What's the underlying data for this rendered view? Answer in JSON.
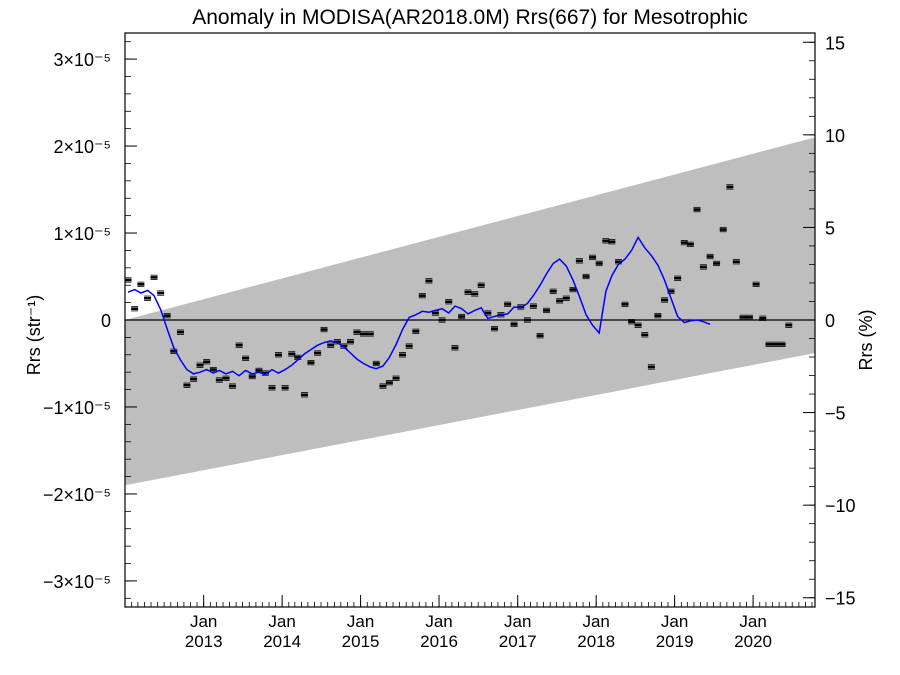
{
  "chart_data": {
    "type": "scatter",
    "title": "Anomaly in MODISA(AR2018.0M) Rrs(667) for Mesotrophic",
    "ylabel_left": "Rrs (str⁻¹)",
    "ylabel_right": "Rrs (%)",
    "xlabel": "",
    "ylim_left": [
      -3.3e-05,
      3.3e-05
    ],
    "ylim_right": [
      -15.5,
      15.5
    ],
    "xlim": [
      "2012-01-01",
      "2020-10-15"
    ],
    "grid": false,
    "left_ticks": [
      {
        "value": 3e-05,
        "label": "3×10⁻⁵"
      },
      {
        "value": 2e-05,
        "label": "2×10⁻⁵"
      },
      {
        "value": 1e-05,
        "label": "1×10⁻⁵"
      },
      {
        "value": 0,
        "label": "0"
      },
      {
        "value": -1e-05,
        "label": "−1×10⁻⁵"
      },
      {
        "value": -2e-05,
        "label": "−2×10⁻⁵"
      },
      {
        "value": -3e-05,
        "label": "−3×10⁻⁵"
      }
    ],
    "right_ticks": [
      {
        "value": 15,
        "label": "15"
      },
      {
        "value": 10,
        "label": "10"
      },
      {
        "value": 5,
        "label": "5"
      },
      {
        "value": 0,
        "label": "0"
      },
      {
        "value": -5,
        "label": "−5"
      },
      {
        "value": -10,
        "label": "−10"
      },
      {
        "value": -15,
        "label": "−15"
      }
    ],
    "x_ticks": [
      {
        "date": "2013-01-01",
        "month": "Jan",
        "year": "2013"
      },
      {
        "date": "2014-01-01",
        "month": "Jan",
        "year": "2014"
      },
      {
        "date": "2015-01-01",
        "month": "Jan",
        "year": "2015"
      },
      {
        "date": "2016-01-01",
        "month": "Jan",
        "year": "2016"
      },
      {
        "date": "2017-01-01",
        "month": "Jan",
        "year": "2017"
      },
      {
        "date": "2018-01-01",
        "month": "Jan",
        "year": "2018"
      },
      {
        "date": "2019-01-01",
        "month": "Jan",
        "year": "2019"
      },
      {
        "date": "2020-01-01",
        "month": "Jan",
        "year": "2020"
      }
    ],
    "band": {
      "color": "#bebebe",
      "upper_start": [
        "2012-01-01",
        0.0
      ],
      "upper_end": [
        "2020-10-15",
        2.1e-05
      ],
      "lower_start": [
        "2012-01-01",
        -1.9e-05
      ],
      "lower_end": [
        "2020-10-15",
        -3.8e-06
      ]
    },
    "points_color": "#000000",
    "points": [
      [
        "2012-01-15",
        4.6e-06
      ],
      [
        "2012-02-15",
        1.3e-06
      ],
      [
        "2012-03-15",
        4.1e-06
      ],
      [
        "2012-04-15",
        2.5e-06
      ],
      [
        "2012-05-15",
        4.9e-06
      ],
      [
        "2012-06-15",
        3.1e-06
      ],
      [
        "2012-07-15",
        5e-07
      ],
      [
        "2012-08-15",
        -3.6e-06
      ],
      [
        "2012-09-15",
        -1.4e-06
      ],
      [
        "2012-10-15",
        -7.5e-06
      ],
      [
        "2012-11-15",
        -6.8e-06
      ],
      [
        "2012-12-15",
        -5.2e-06
      ],
      [
        "2013-01-15",
        -4.8e-06
      ],
      [
        "2013-02-15",
        -5.7e-06
      ],
      [
        "2013-03-15",
        -6.9e-06
      ],
      [
        "2013-04-15",
        -6.7e-06
      ],
      [
        "2013-05-15",
        -7.6e-06
      ],
      [
        "2013-06-15",
        -2.9e-06
      ],
      [
        "2013-07-15",
        -4.4e-06
      ],
      [
        "2013-08-15",
        -6.5e-06
      ],
      [
        "2013-09-15",
        -5.8e-06
      ],
      [
        "2013-10-15",
        -6.1e-06
      ],
      [
        "2013-11-15",
        -7.8e-06
      ],
      [
        "2013-12-15",
        -4e-06
      ],
      [
        "2014-01-15",
        -7.8e-06
      ],
      [
        "2014-02-15",
        -3.9e-06
      ],
      [
        "2014-03-15",
        -4.3e-06
      ],
      [
        "2014-04-15",
        -8.6e-06
      ],
      [
        "2014-05-15",
        -4.9e-06
      ],
      [
        "2014-06-15",
        -3.8e-06
      ],
      [
        "2014-07-15",
        -1.1e-06
      ],
      [
        "2014-08-15",
        -2.9e-06
      ],
      [
        "2014-09-15",
        -2.5e-06
      ],
      [
        "2014-10-15",
        -3e-06
      ],
      [
        "2014-11-15",
        -2.5e-06
      ],
      [
        "2014-12-15",
        -1.4e-06
      ],
      [
        "2015-01-15",
        -1.6e-06
      ],
      [
        "2015-02-15",
        -1.6e-06
      ],
      [
        "2015-03-15",
        -5e-06
      ],
      [
        "2015-04-15",
        -7.6e-06
      ],
      [
        "2015-05-15",
        -7.2e-06
      ],
      [
        "2015-06-15",
        -6.7e-06
      ],
      [
        "2015-07-15",
        -4e-06
      ],
      [
        "2015-08-15",
        -3e-06
      ],
      [
        "2015-09-15",
        -1.3e-06
      ],
      [
        "2015-10-15",
        2.8e-06
      ],
      [
        "2015-11-15",
        4.5e-06
      ],
      [
        "2015-12-15",
        8e-07
      ],
      [
        "2016-01-15",
        0.0
      ],
      [
        "2016-02-15",
        2.1e-06
      ],
      [
        "2016-03-15",
        -3.2e-06
      ],
      [
        "2016-04-15",
        4e-07
      ],
      [
        "2016-05-15",
        3.2e-06
      ],
      [
        "2016-06-15",
        3e-06
      ],
      [
        "2016-07-15",
        4e-06
      ],
      [
        "2016-08-15",
        8e-07
      ],
      [
        "2016-09-15",
        -1e-06
      ],
      [
        "2016-10-15",
        6e-07
      ],
      [
        "2016-11-15",
        1.8e-06
      ],
      [
        "2016-12-15",
        -5e-07
      ],
      [
        "2017-01-15",
        1.5e-06
      ],
      [
        "2017-02-15",
        0.0
      ],
      [
        "2017-03-15",
        1.6e-06
      ],
      [
        "2017-04-15",
        -1.8e-06
      ],
      [
        "2017-05-15",
        1.1e-06
      ],
      [
        "2017-06-15",
        3.3e-06
      ],
      [
        "2017-07-15",
        2.2e-06
      ],
      [
        "2017-08-15",
        2.5e-06
      ],
      [
        "2017-09-15",
        3.5e-06
      ],
      [
        "2017-10-15",
        6.8e-06
      ],
      [
        "2017-11-15",
        5e-06
      ],
      [
        "2017-12-15",
        7.2e-06
      ],
      [
        "2018-01-15",
        6.5e-06
      ],
      [
        "2018-02-15",
        9.1e-06
      ],
      [
        "2018-03-15",
        9e-06
      ],
      [
        "2018-04-15",
        6.7e-06
      ],
      [
        "2018-05-15",
        1.8e-06
      ],
      [
        "2018-06-15",
        -2e-07
      ],
      [
        "2018-07-15",
        -6e-07
      ],
      [
        "2018-08-15",
        -1.7e-06
      ],
      [
        "2018-09-15",
        -5.4e-06
      ],
      [
        "2018-10-15",
        5e-07
      ],
      [
        "2018-11-15",
        2.3e-06
      ],
      [
        "2018-12-15",
        3.3e-06
      ],
      [
        "2019-01-15",
        4.8e-06
      ],
      [
        "2019-02-15",
        8.9e-06
      ],
      [
        "2019-03-15",
        8.7e-06
      ],
      [
        "2019-04-15",
        1.27e-05
      ],
      [
        "2019-05-15",
        6.1e-06
      ],
      [
        "2019-06-15",
        7.3e-06
      ],
      [
        "2019-07-15",
        6.5e-06
      ],
      [
        "2019-08-15",
        1.04e-05
      ],
      [
        "2019-09-15",
        1.53e-05
      ],
      [
        "2019-10-15",
        6.7e-06
      ],
      [
        "2019-11-15",
        3e-07
      ],
      [
        "2019-12-15",
        3e-07
      ],
      [
        "2020-01-15",
        4.1e-06
      ],
      [
        "2020-02-15",
        2e-07
      ],
      [
        "2020-03-15",
        -2.8e-06
      ],
      [
        "2020-04-15",
        -2.8e-06
      ],
      [
        "2020-05-15",
        -2.8e-06
      ],
      [
        "2020-06-15",
        -6e-07
      ]
    ],
    "smooth_line_color": "#0000ff",
    "smooth_line": [
      [
        "2012-01-15",
        3.2e-06
      ],
      [
        "2012-02-15",
        3.5e-06
      ],
      [
        "2012-03-15",
        3.1e-06
      ],
      [
        "2012-04-15",
        3.4e-06
      ],
      [
        "2012-05-15",
        2.8e-06
      ],
      [
        "2012-06-15",
        1.2e-06
      ],
      [
        "2012-07-15",
        -1e-06
      ],
      [
        "2012-08-15",
        -3.2e-06
      ],
      [
        "2012-09-15",
        -4.6e-06
      ],
      [
        "2012-10-15",
        -5.7e-06
      ],
      [
        "2012-11-15",
        -6.2e-06
      ],
      [
        "2012-12-15",
        -6e-06
      ],
      [
        "2013-01-15",
        -5.7e-06
      ],
      [
        "2013-02-15",
        -6.1e-06
      ],
      [
        "2013-03-15",
        -5.8e-06
      ],
      [
        "2013-04-15",
        -6.2e-06
      ],
      [
        "2013-05-15",
        -5.9e-06
      ],
      [
        "2013-06-15",
        -6.4e-06
      ],
      [
        "2013-07-15",
        -5.8e-06
      ],
      [
        "2013-08-15",
        -6.2e-06
      ],
      [
        "2013-09-15",
        -6e-06
      ],
      [
        "2013-10-15",
        -6.3e-06
      ],
      [
        "2013-11-15",
        -5.7e-06
      ],
      [
        "2013-12-15",
        -6.1e-06
      ],
      [
        "2014-01-15",
        -5.7e-06
      ],
      [
        "2014-02-15",
        -5.2e-06
      ],
      [
        "2014-03-15",
        -4.6e-06
      ],
      [
        "2014-04-15",
        -3.9e-06
      ],
      [
        "2014-05-15",
        -3.4e-06
      ],
      [
        "2014-06-15",
        -2.9e-06
      ],
      [
        "2014-07-15",
        -2.6e-06
      ],
      [
        "2014-08-15",
        -2.4e-06
      ],
      [
        "2014-09-15",
        -2.6e-06
      ],
      [
        "2014-10-15",
        -3.1e-06
      ],
      [
        "2014-11-15",
        -3.8e-06
      ],
      [
        "2014-12-15",
        -4.5e-06
      ],
      [
        "2015-01-15",
        -5e-06
      ],
      [
        "2015-02-15",
        -5.4e-06
      ],
      [
        "2015-03-15",
        -5.6e-06
      ],
      [
        "2015-04-15",
        -5.3e-06
      ],
      [
        "2015-05-15",
        -4.3e-06
      ],
      [
        "2015-06-15",
        -2.8e-06
      ],
      [
        "2015-07-15",
        -1.1e-06
      ],
      [
        "2015-08-15",
        3e-07
      ],
      [
        "2015-09-15",
        6e-07
      ],
      [
        "2015-10-15",
        1e-06
      ],
      [
        "2015-11-15",
        9e-07
      ],
      [
        "2015-12-15",
        1.1e-06
      ],
      [
        "2016-01-15",
        1.3e-06
      ],
      [
        "2016-02-15",
        8e-07
      ],
      [
        "2016-03-15",
        1.6e-06
      ],
      [
        "2016-04-15",
        1.3e-06
      ],
      [
        "2016-05-15",
        7e-07
      ],
      [
        "2016-06-15",
        1.1e-06
      ],
      [
        "2016-07-15",
        1.4e-06
      ],
      [
        "2016-08-15",
        2e-07
      ],
      [
        "2016-09-15",
        4e-07
      ],
      [
        "2016-10-15",
        6e-07
      ],
      [
        "2016-11-15",
        7e-07
      ],
      [
        "2016-12-15",
        1.5e-06
      ],
      [
        "2017-01-15",
        1.4e-06
      ],
      [
        "2017-02-15",
        1.9e-06
      ],
      [
        "2017-03-15",
        2.8e-06
      ],
      [
        "2017-04-15",
        4e-06
      ],
      [
        "2017-05-15",
        5.3e-06
      ],
      [
        "2017-06-15",
        6.5e-06
      ],
      [
        "2017-07-15",
        7e-06
      ],
      [
        "2017-08-15",
        6.2e-06
      ],
      [
        "2017-09-15",
        4.6e-06
      ],
      [
        "2017-10-15",
        2.7e-06
      ],
      [
        "2017-11-15",
        6e-07
      ],
      [
        "2017-12-15",
        -6e-07
      ],
      [
        "2018-01-15",
        -1.5e-06
      ],
      [
        "2018-02-15",
        3.3e-06
      ],
      [
        "2018-03-15",
        5.1e-06
      ],
      [
        "2018-04-15",
        6.4e-06
      ],
      [
        "2018-05-15",
        7e-06
      ],
      [
        "2018-06-15",
        8e-06
      ],
      [
        "2018-07-15",
        9.5e-06
      ],
      [
        "2018-08-15",
        8.3e-06
      ],
      [
        "2018-09-15",
        7.4e-06
      ],
      [
        "2018-10-15",
        6.3e-06
      ],
      [
        "2018-11-15",
        4.6e-06
      ],
      [
        "2018-12-15",
        2.5e-06
      ],
      [
        "2019-01-15",
        4e-07
      ],
      [
        "2019-02-15",
        -3e-07
      ],
      [
        "2019-03-15",
        -1e-07
      ],
      [
        "2019-04-15",
        0.0
      ],
      [
        "2019-05-15",
        -2e-07
      ],
      [
        "2019-06-15",
        -5e-07
      ]
    ]
  }
}
